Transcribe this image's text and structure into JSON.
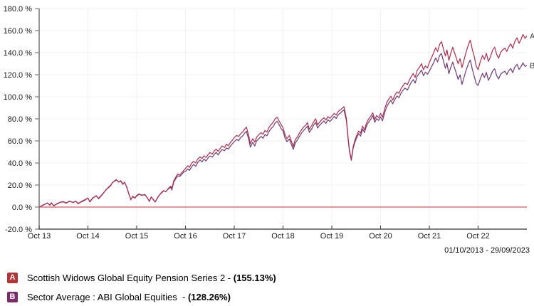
{
  "chart": {
    "date_range": "01/10/2013 - 29/09/2023",
    "colors": {
      "series_a_line": "#aa2e4e",
      "series_b_line": "#6d3a74",
      "zero_line": "#e07173",
      "axis": "#7d7d7d",
      "gridline": "#f1f1f1",
      "tick_text": "#1a1a1a",
      "end_label_text": "#3c3c3c"
    }
  },
  "chart_data": {
    "type": "line",
    "title": "",
    "x_axis": {
      "tick_labels": [
        "Oct 13",
        "Oct 14",
        "Oct 15",
        "Oct 16",
        "Oct 17",
        "Oct 18",
        "Oct 19",
        "Oct 20",
        "Oct 21",
        "Oct 22"
      ],
      "range_years": [
        0,
        10
      ],
      "date_range": "01/10/2013 - 29/09/2023"
    },
    "y_axis": {
      "unit": "%",
      "min": -20,
      "max": 180,
      "step": 20,
      "tick_labels": [
        "180.0 %",
        "160.0 %",
        "140.0 %",
        "120.0 %",
        "100.0 %",
        "80.0 %",
        "60.0 %",
        "40.0 %",
        "20.0 %",
        "0.0 %",
        "-20.0 %"
      ]
    },
    "zero_line": {
      "value": 0
    },
    "grid": true,
    "legend_position": "bottom-left",
    "series": [
      {
        "id": "A",
        "name": "Scottish Widows Global Equity Pension Series 2",
        "final_value_pct": 155.13,
        "color": "#aa2e4e"
      },
      {
        "id": "B",
        "name": "Sector Average : ABI Global Equities",
        "final_value_pct": 128.26,
        "color": "#6d3a74"
      }
    ],
    "points_format": [
      "years_since_01_10_2013",
      "series_A_cumulative_return_pct",
      "series_B_cumulative_return_pct"
    ],
    "points": [
      [
        0.0,
        0.0,
        0.0
      ],
      [
        0.08,
        2.0,
        1.6
      ],
      [
        0.17,
        3.5,
        3.8
      ],
      [
        0.22,
        2.0,
        1.6
      ],
      [
        0.25,
        4.0,
        3.7
      ],
      [
        0.3,
        1.0,
        1.4
      ],
      [
        0.38,
        3.5,
        3.1
      ],
      [
        0.45,
        4.5,
        4.8
      ],
      [
        0.5,
        5.0,
        4.6
      ],
      [
        0.55,
        3.5,
        3.8
      ],
      [
        0.62,
        5.5,
        5.1
      ],
      [
        0.7,
        4.0,
        4.3
      ],
      [
        0.75,
        5.5,
        5.2
      ],
      [
        0.8,
        3.0,
        3.4
      ],
      [
        0.88,
        5.5,
        5.0
      ],
      [
        0.95,
        7.0,
        6.6
      ],
      [
        1.0,
        8.0,
        8.3
      ],
      [
        1.04,
        5.0,
        4.6
      ],
      [
        1.1,
        8.5,
        8.1
      ],
      [
        1.17,
        10.0,
        10.4
      ],
      [
        1.22,
        8.0,
        7.5
      ],
      [
        1.3,
        12.0,
        11.6
      ],
      [
        1.38,
        16.0,
        16.3
      ],
      [
        1.42,
        18.0,
        17.5
      ],
      [
        1.47,
        20.0,
        19.6
      ],
      [
        1.5,
        22.0,
        22.3
      ],
      [
        1.55,
        24.0,
        23.5
      ],
      [
        1.58,
        25.0,
        24.6
      ],
      [
        1.63,
        22.5,
        22.9
      ],
      [
        1.67,
        24.0,
        23.5
      ],
      [
        1.72,
        21.0,
        20.6
      ],
      [
        1.75,
        22.5,
        22.8
      ],
      [
        1.8,
        18.0,
        17.5
      ],
      [
        1.84,
        12.0,
        11.7
      ],
      [
        1.88,
        6.5,
        7.0
      ],
      [
        1.92,
        10.0,
        9.5
      ],
      [
        1.96,
        8.0,
        8.4
      ],
      [
        2.0,
        10.5,
        10.0
      ],
      [
        2.05,
        12.0,
        11.6
      ],
      [
        2.1,
        10.5,
        10.9
      ],
      [
        2.17,
        11.5,
        11.0
      ],
      [
        2.22,
        8.0,
        8.4
      ],
      [
        2.26,
        5.5,
        5.1
      ],
      [
        2.3,
        9.0,
        9.3
      ],
      [
        2.34,
        7.0,
        6.5
      ],
      [
        2.38,
        4.5,
        4.9
      ],
      [
        2.43,
        9.0,
        8.5
      ],
      [
        2.47,
        11.0,
        11.3
      ],
      [
        2.5,
        13.0,
        12.5
      ],
      [
        2.55,
        15.0,
        14.6
      ],
      [
        2.6,
        14.0,
        14.3
      ],
      [
        2.65,
        17.0,
        16.5
      ],
      [
        2.7,
        19.0,
        18.0
      ],
      [
        2.72,
        16.5,
        15.4
      ],
      [
        2.76,
        24.0,
        22.8
      ],
      [
        2.8,
        27.0,
        25.6
      ],
      [
        2.84,
        30.0,
        28.4
      ],
      [
        2.88,
        29.0,
        27.7
      ],
      [
        2.92,
        31.0,
        29.4
      ],
      [
        2.96,
        33.0,
        31.6
      ],
      [
        3.0,
        35.0,
        32.4
      ],
      [
        3.05,
        37.5,
        34.6
      ],
      [
        3.08,
        36.0,
        33.2
      ],
      [
        3.13,
        40.0,
        36.8
      ],
      [
        3.17,
        41.5,
        38.7
      ],
      [
        3.21,
        40.0,
        36.9
      ],
      [
        3.25,
        43.5,
        40.3
      ],
      [
        3.3,
        45.5,
        42.8
      ],
      [
        3.34,
        44.0,
        40.9
      ],
      [
        3.38,
        46.5,
        43.6
      ],
      [
        3.42,
        45.0,
        41.8
      ],
      [
        3.47,
        48.0,
        45.1
      ],
      [
        3.5,
        49.5,
        46.3
      ],
      [
        3.55,
        48.0,
        45.2
      ],
      [
        3.59,
        51.0,
        47.8
      ],
      [
        3.63,
        52.5,
        49.6
      ],
      [
        3.67,
        50.5,
        47.2
      ],
      [
        3.71,
        53.0,
        50.1
      ],
      [
        3.75,
        55.5,
        52.2
      ],
      [
        3.8,
        54.0,
        51.1
      ],
      [
        3.84,
        57.0,
        53.7
      ],
      [
        3.88,
        55.5,
        52.6
      ],
      [
        3.92,
        58.5,
        55.2
      ],
      [
        3.96,
        60.5,
        57.4
      ],
      [
        4.0,
        63.0,
        59.3
      ],
      [
        4.05,
        65.0,
        61.4
      ],
      [
        4.09,
        64.0,
        60.2
      ],
      [
        4.13,
        66.5,
        63.1
      ],
      [
        4.17,
        68.0,
        64.3
      ],
      [
        4.21,
        70.5,
        66.9
      ],
      [
        4.25,
        72.5,
        68.8
      ],
      [
        4.3,
        64.0,
        60.9
      ],
      [
        4.33,
        57.5,
        54.3
      ],
      [
        4.38,
        62.0,
        58.7
      ],
      [
        4.42,
        59.0,
        55.4
      ],
      [
        4.46,
        63.5,
        60.1
      ],
      [
        4.5,
        65.5,
        61.8
      ],
      [
        4.55,
        67.5,
        64.1
      ],
      [
        4.59,
        66.0,
        62.4
      ],
      [
        4.63,
        69.5,
        65.8
      ],
      [
        4.67,
        68.0,
        64.6
      ],
      [
        4.71,
        72.0,
        68.3
      ],
      [
        4.75,
        74.5,
        70.9
      ],
      [
        4.8,
        77.0,
        73.2
      ],
      [
        4.84,
        80.0,
        76.4
      ],
      [
        4.88,
        81.5,
        77.8
      ],
      [
        4.92,
        78.0,
        74.7
      ],
      [
        4.96,
        75.0,
        71.3
      ],
      [
        5.0,
        72.0,
        68.9
      ],
      [
        5.04,
        66.0,
        62.8
      ],
      [
        5.08,
        62.0,
        59.2
      ],
      [
        5.13,
        65.0,
        61.7
      ],
      [
        5.17,
        60.0,
        57.1
      ],
      [
        5.21,
        55.0,
        52.3
      ],
      [
        5.25,
        61.0,
        57.9
      ],
      [
        5.3,
        64.0,
        61.2
      ],
      [
        5.34,
        67.5,
        64.3
      ],
      [
        5.38,
        70.0,
        67.1
      ],
      [
        5.42,
        72.5,
        69.3
      ],
      [
        5.46,
        74.0,
        71.2
      ],
      [
        5.5,
        76.5,
        73.4
      ],
      [
        5.54,
        70.5,
        67.8
      ],
      [
        5.59,
        74.0,
        70.9
      ],
      [
        5.63,
        77.5,
        74.6
      ],
      [
        5.67,
        80.0,
        76.8
      ],
      [
        5.71,
        74.5,
        71.7
      ],
      [
        5.75,
        77.0,
        74.2
      ],
      [
        5.8,
        79.5,
        76.4
      ],
      [
        5.84,
        81.0,
        78.2
      ],
      [
        5.88,
        79.0,
        75.9
      ],
      [
        5.92,
        82.0,
        79.1
      ],
      [
        5.96,
        80.5,
        77.6
      ],
      [
        6.0,
        82.5,
        79.4
      ],
      [
        6.05,
        85.0,
        82.2
      ],
      [
        6.09,
        83.5,
        80.4
      ],
      [
        6.13,
        86.5,
        83.6
      ],
      [
        6.17,
        88.0,
        84.9
      ],
      [
        6.21,
        89.5,
        86.7
      ],
      [
        6.25,
        91.0,
        88.1
      ],
      [
        6.3,
        80.0,
        78.2
      ],
      [
        6.33,
        65.0,
        63.6
      ],
      [
        6.36,
        52.0,
        50.9
      ],
      [
        6.4,
        43.5,
        42.4
      ],
      [
        6.44,
        55.0,
        53.6
      ],
      [
        6.47,
        60.0,
        58.3
      ],
      [
        6.5,
        64.0,
        61.9
      ],
      [
        6.55,
        69.0,
        66.6
      ],
      [
        6.59,
        67.0,
        64.3
      ],
      [
        6.63,
        73.5,
        70.8
      ],
      [
        6.67,
        70.0,
        67.6
      ],
      [
        6.71,
        76.0,
        73.2
      ],
      [
        6.75,
        79.5,
        76.8
      ],
      [
        6.8,
        82.5,
        79.7
      ],
      [
        6.84,
        85.5,
        82.9
      ],
      [
        6.88,
        79.5,
        76.8
      ],
      [
        6.92,
        83.0,
        80.2
      ],
      [
        6.96,
        81.0,
        78.5
      ],
      [
        7.0,
        85.0,
        81.7
      ],
      [
        7.04,
        81.5,
        78.1
      ],
      [
        7.09,
        90.0,
        86.4
      ],
      [
        7.13,
        95.0,
        91.2
      ],
      [
        7.17,
        98.0,
        94.3
      ],
      [
        7.21,
        100.5,
        96.8
      ],
      [
        7.25,
        97.0,
        93.6
      ],
      [
        7.3,
        102.0,
        98.1
      ],
      [
        7.34,
        104.5,
        100.7
      ],
      [
        7.38,
        103.0,
        99.2
      ],
      [
        7.42,
        107.5,
        103.4
      ],
      [
        7.46,
        110.0,
        105.9
      ],
      [
        7.5,
        112.5,
        107.8
      ],
      [
        7.55,
        111.0,
        106.1
      ],
      [
        7.59,
        115.0,
        109.8
      ],
      [
        7.63,
        118.5,
        113.2
      ],
      [
        7.67,
        121.0,
        115.6
      ],
      [
        7.71,
        117.5,
        112.4
      ],
      [
        7.75,
        124.0,
        118.7
      ],
      [
        7.8,
        127.0,
        121.5
      ],
      [
        7.84,
        130.0,
        124.2
      ],
      [
        7.88,
        124.5,
        119.1
      ],
      [
        7.92,
        128.0,
        122.3
      ],
      [
        7.96,
        126.0,
        120.4
      ],
      [
        8.0,
        131.0,
        123.2
      ],
      [
        8.05,
        136.0,
        127.6
      ],
      [
        8.09,
        140.0,
        131.1
      ],
      [
        8.13,
        144.5,
        135.3
      ],
      [
        8.17,
        141.0,
        131.6
      ],
      [
        8.21,
        147.5,
        137.4
      ],
      [
        8.25,
        150.0,
        139.2
      ],
      [
        8.29,
        143.0,
        132.1
      ],
      [
        8.33,
        137.0,
        125.8
      ],
      [
        8.36,
        142.5,
        130.6
      ],
      [
        8.4,
        133.0,
        120.9
      ],
      [
        8.44,
        139.5,
        126.8
      ],
      [
        8.48,
        145.0,
        131.4
      ],
      [
        8.5,
        142.0,
        128.3
      ],
      [
        8.55,
        135.5,
        121.7
      ],
      [
        8.59,
        130.0,
        115.8
      ],
      [
        8.63,
        134.5,
        119.9
      ],
      [
        8.67,
        126.5,
        111.2
      ],
      [
        8.71,
        133.0,
        117.4
      ],
      [
        8.75,
        140.0,
        123.6
      ],
      [
        8.8,
        147.0,
        129.8
      ],
      [
        8.84,
        151.5,
        133.4
      ],
      [
        8.88,
        143.0,
        125.1
      ],
      [
        8.92,
        136.5,
        118.7
      ],
      [
        8.96,
        128.0,
        111.9
      ],
      [
        9.0,
        124.5,
        110.3
      ],
      [
        9.04,
        131.0,
        115.6
      ],
      [
        9.09,
        137.5,
        121.2
      ],
      [
        9.13,
        134.0,
        117.5
      ],
      [
        9.17,
        139.5,
        122.1
      ],
      [
        9.21,
        132.0,
        114.9
      ],
      [
        9.25,
        136.0,
        118.3
      ],
      [
        9.3,
        142.5,
        123.6
      ],
      [
        9.34,
        145.0,
        125.4
      ],
      [
        9.38,
        138.5,
        119.2
      ],
      [
        9.42,
        135.0,
        116.1
      ],
      [
        9.46,
        140.0,
        120.3
      ],
      [
        9.5,
        142.5,
        122.0
      ],
      [
        9.55,
        144.0,
        123.1
      ],
      [
        9.59,
        141.0,
        120.2
      ],
      [
        9.63,
        145.5,
        123.8
      ],
      [
        9.67,
        148.0,
        125.6
      ],
      [
        9.71,
        144.0,
        121.9
      ],
      [
        9.75,
        150.0,
        126.8
      ],
      [
        9.8,
        153.5,
        129.4
      ],
      [
        9.84,
        148.5,
        124.7
      ],
      [
        9.88,
        152.0,
        127.3
      ],
      [
        9.92,
        156.5,
        130.8
      ],
      [
        9.96,
        153.0,
        127.6
      ],
      [
        10.0,
        155.13,
        128.26
      ]
    ]
  },
  "legend": {
    "rows": [
      {
        "id": "A",
        "color": "#b23538",
        "name": "Scottish Widows Global Equity Pension Series 2 - ",
        "value": "(155.13%)"
      },
      {
        "id": "B",
        "color": "#7a2c68",
        "name": "Sector Average : ABI Global Equities  - ",
        "value": "(128.26%)"
      }
    ]
  }
}
